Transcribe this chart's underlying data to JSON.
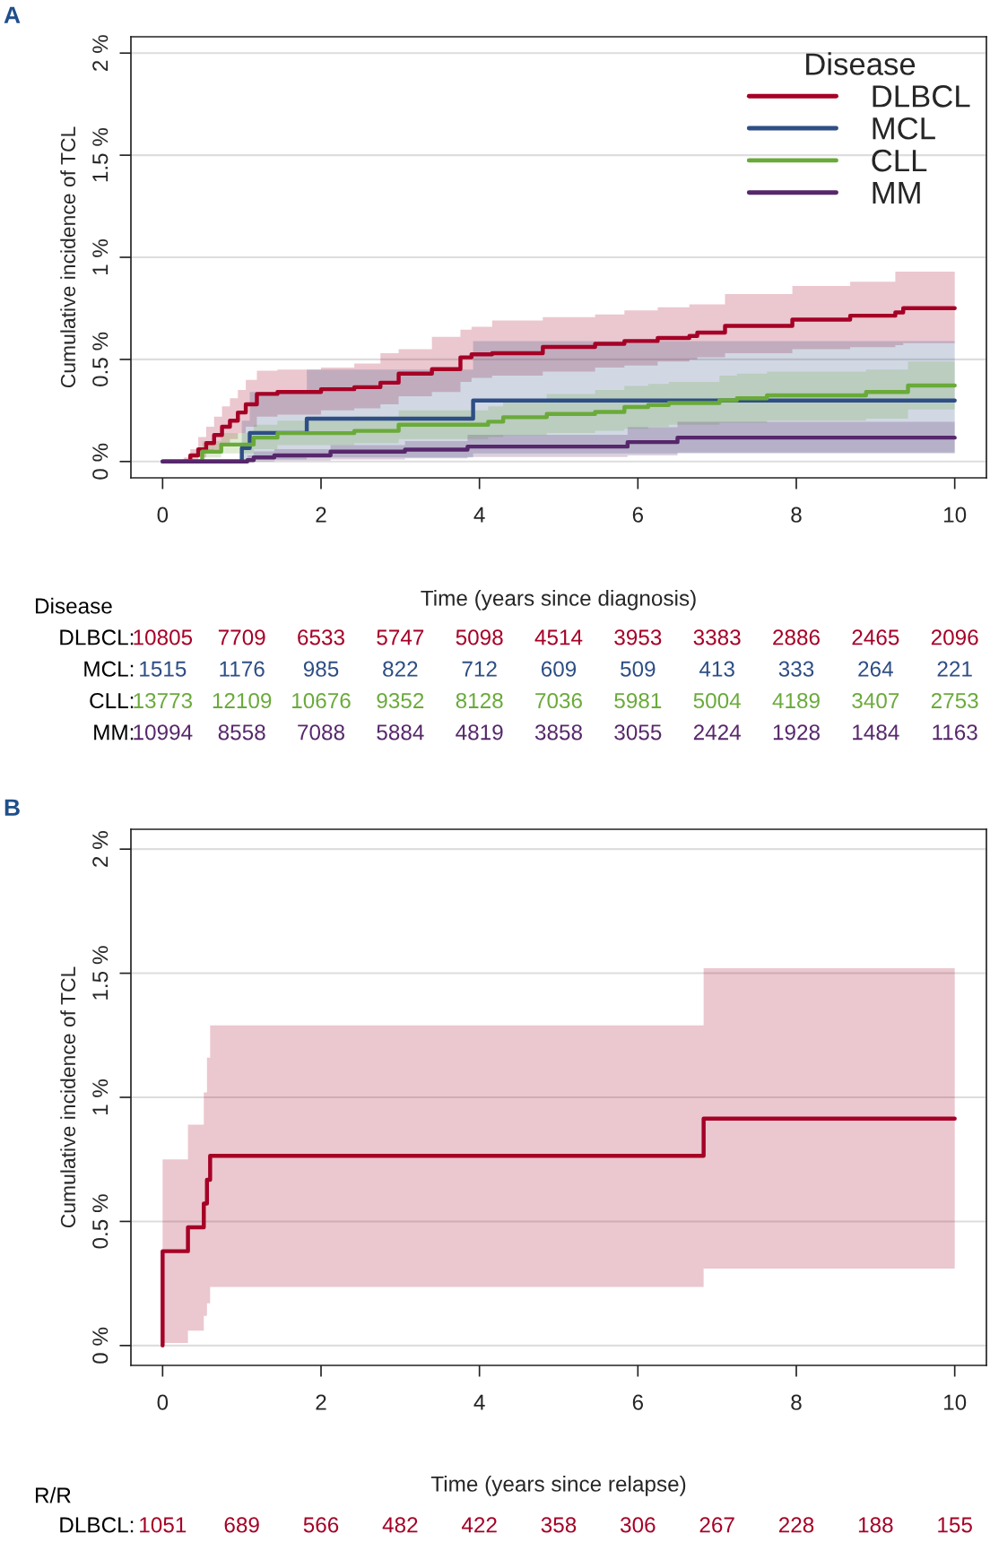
{
  "chart_data": [
    {
      "type": "step",
      "title": "A",
      "xlabel": "Time (years since diagnosis)",
      "ylabel": "Cumulative incidence of TCL",
      "xlim": [
        -0.4,
        10.4
      ],
      "ylim": [
        -0.08,
        2.08
      ],
      "xticks": [
        0,
        2,
        4,
        6,
        8,
        10
      ],
      "yticks": [
        {
          "value": 0,
          "label": "0 %"
        },
        {
          "value": 0.5,
          "label": "0.5 %"
        },
        {
          "value": 1,
          "label": "1 %"
        },
        {
          "value": 1.5,
          "label": "1.5 %"
        },
        {
          "value": 2,
          "label": "2 %"
        }
      ],
      "grid": "y",
      "legend": "top right",
      "legend_title": "Disease",
      "series": [
        {
          "name": "DLBCL",
          "color": "#a50026",
          "x": [
            0.27,
            0.35,
            0.45,
            0.55,
            0.65,
            0.75,
            0.85,
            0.95,
            1.05,
            1.19,
            1.45,
            2.0,
            2.42,
            2.75,
            2.98,
            3.4,
            3.76,
            3.9,
            4.16,
            4.8,
            5.46,
            5.83,
            6.25,
            6.65,
            6.75,
            7.1,
            7.95,
            8.68,
            9.25,
            9.35,
            10
          ],
          "values": [
            0,
            0.03,
            0.06,
            0.09,
            0.13,
            0.17,
            0.2,
            0.24,
            0.28,
            0.331,
            0.34,
            0.354,
            0.364,
            0.386,
            0.43,
            0.452,
            0.51,
            0.525,
            0.53,
            0.561,
            0.576,
            0.59,
            0.605,
            0.615,
            0.631,
            0.664,
            0.695,
            0.714,
            0.73,
            0.751,
            0.751
          ],
          "upper": [
            0.02,
            0.06,
            0.12,
            0.17,
            0.22,
            0.27,
            0.31,
            0.35,
            0.4,
            0.445,
            0.45,
            0.46,
            0.48,
            0.53,
            0.55,
            0.61,
            0.645,
            0.66,
            0.69,
            0.707,
            0.72,
            0.74,
            0.755,
            0.77,
            0.77,
            0.82,
            0.86,
            0.88,
            0.93,
            0.93,
            0.93
          ],
          "lower": [
            0,
            0.01,
            0.02,
            0.04,
            0.06,
            0.09,
            0.11,
            0.14,
            0.17,
            0.22,
            0.23,
            0.25,
            0.26,
            0.28,
            0.32,
            0.34,
            0.39,
            0.41,
            0.42,
            0.44,
            0.46,
            0.47,
            0.49,
            0.5,
            0.51,
            0.53,
            0.55,
            0.56,
            0.57,
            0.58,
            0.58
          ]
        },
        {
          "name": "MCL",
          "color": "#2e4e85",
          "x": [
            0,
            1.0,
            1.1,
            1.82,
            3.92,
            10
          ],
          "values": [
            0,
            0.066,
            0.14,
            0.21,
            0.299,
            0.299
          ],
          "upper": [
            0,
            0.2,
            0.34,
            0.45,
            0.59,
            0.59
          ],
          "lower": [
            0,
            0,
            0.01,
            0.02,
            0.04,
            0.04
          ]
        },
        {
          "name": "CLL",
          "color": "#6aaa3a",
          "x": [
            0.27,
            0.5,
            0.74,
            1.15,
            1.45,
            2.42,
            2.98,
            4.11,
            4.3,
            4.85,
            5.46,
            5.83,
            6.13,
            6.39,
            7.03,
            7.25,
            7.63,
            8.88,
            9.41,
            10
          ],
          "values": [
            0,
            0.048,
            0.083,
            0.117,
            0.139,
            0.15,
            0.18,
            0.195,
            0.217,
            0.233,
            0.243,
            0.267,
            0.277,
            0.287,
            0.3,
            0.31,
            0.324,
            0.34,
            0.372,
            0.372
          ],
          "upper": [
            0.01,
            0.1,
            0.14,
            0.18,
            0.2,
            0.22,
            0.25,
            0.27,
            0.3,
            0.33,
            0.35,
            0.37,
            0.38,
            0.39,
            0.42,
            0.43,
            0.44,
            0.45,
            0.49,
            0.49
          ],
          "lower": [
            0,
            0.02,
            0.04,
            0.06,
            0.08,
            0.09,
            0.11,
            0.12,
            0.13,
            0.14,
            0.15,
            0.16,
            0.17,
            0.18,
            0.19,
            0.19,
            0.2,
            0.21,
            0.255,
            0.255
          ]
        },
        {
          "name": "MM",
          "color": "#56276b",
          "x": [
            0,
            1.07,
            1.15,
            1.41,
            2.12,
            3.06,
            3.85,
            5.87,
            6.5,
            10
          ],
          "values": [
            0,
            0.007,
            0.02,
            0.03,
            0.048,
            0.058,
            0.073,
            0.095,
            0.117,
            0.117
          ],
          "upper": [
            0,
            0.03,
            0.05,
            0.06,
            0.08,
            0.1,
            0.131,
            0.168,
            0.194,
            0.194
          ],
          "lower": [
            0,
            0,
            0,
            0.005,
            0.01,
            0.015,
            0.022,
            0.03,
            0.044,
            0.044
          ]
        }
      ],
      "annotations": [
        "Disease",
        "DLBCL: 10805 7709 6533 5747 5098 4514 3953 3383 2886 2465 2096",
        "MCL: 1515 1176 985 822 712 609 509 413 333 264 221",
        "CLL: 13773 12109 10676 9352 8128 7036 5981 5004 4189 3407 2753",
        "MM: 10994 8558 7088 5884 4819 3858 3055 2424 1928 1484 1163"
      ]
    },
    {
      "type": "step",
      "title": "B",
      "xlabel": "Time (years since relapse)",
      "ylabel": "Cumulative incidence of TCL",
      "xlim": [
        -0.4,
        10.4
      ],
      "ylim": [
        -0.08,
        2.08
      ],
      "xticks": [
        0,
        2,
        4,
        6,
        8,
        10
      ],
      "yticks": [
        {
          "value": 0,
          "label": "0 %"
        },
        {
          "value": 0.5,
          "label": "0.5 %"
        },
        {
          "value": 1,
          "label": "1 %"
        },
        {
          "value": 1.5,
          "label": "1.5 %"
        },
        {
          "value": 2,
          "label": "2 %"
        }
      ],
      "grid": "y",
      "series": [
        {
          "color": "#a50026",
          "x": [
            0,
            0,
            0.32,
            0.52,
            0.56,
            0.6,
            6.83,
            10
          ],
          "values": [
            0,
            0.38,
            0.476,
            0.572,
            0.668,
            0.764,
            0.914,
            0.914
          ],
          "upper": [
            0,
            0.75,
            0.89,
            1.02,
            1.16,
            1.29,
            1.52,
            1.52
          ],
          "lower": [
            0,
            0.01,
            0.06,
            0.12,
            0.17,
            0.236,
            0.31,
            0.31
          ]
        }
      ],
      "annotations": [
        "R/R",
        "DLBCL: 1051 689 566 482 422 358 306 267 228 188 155"
      ]
    }
  ]
}
